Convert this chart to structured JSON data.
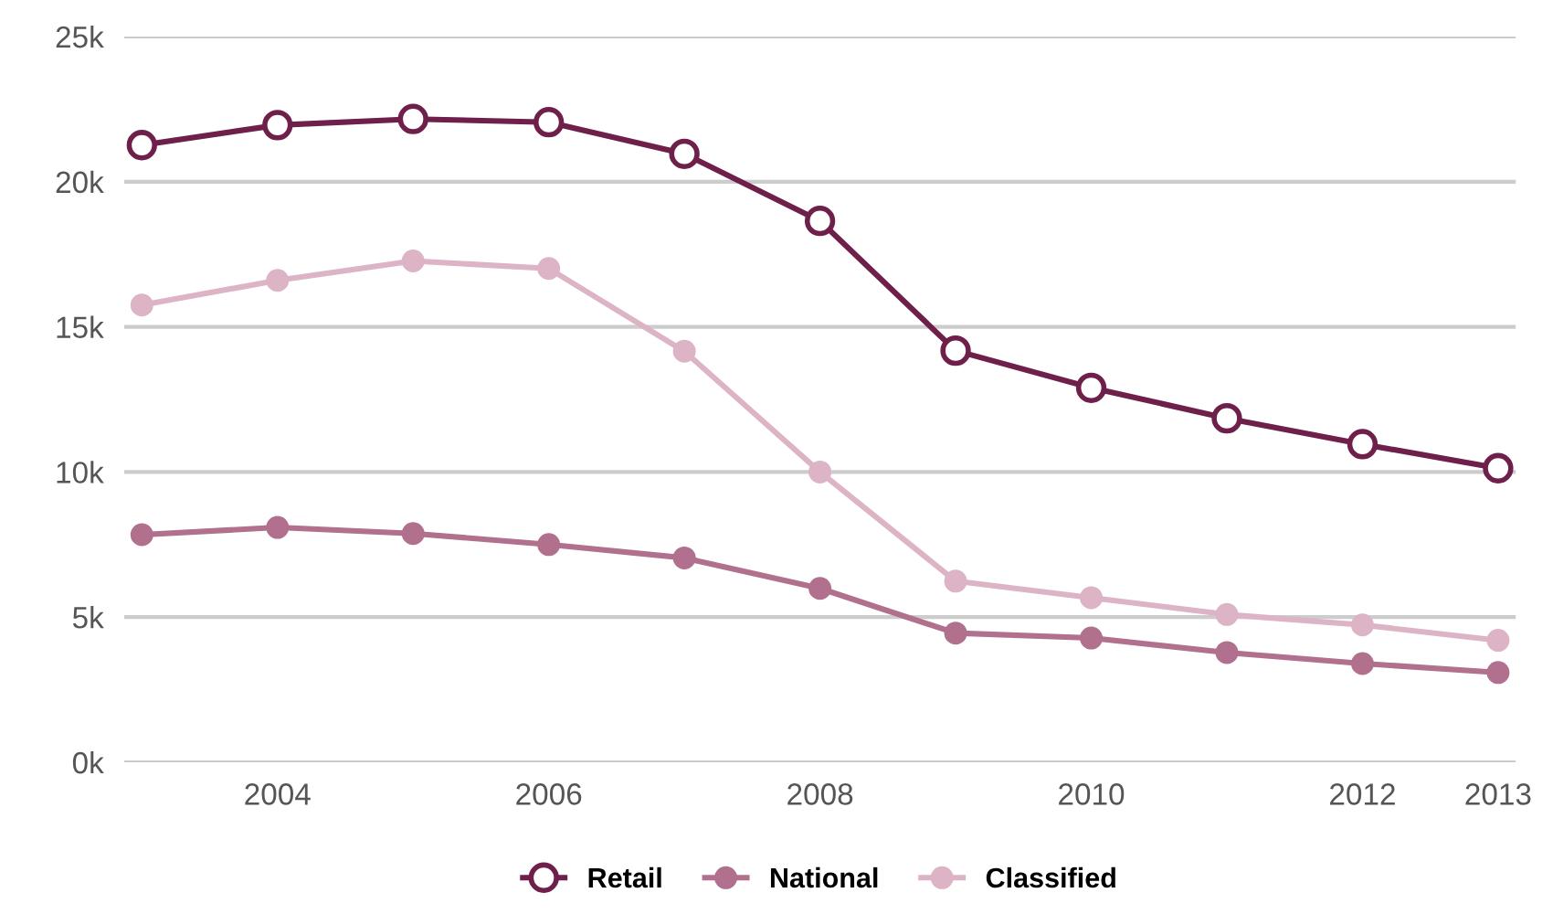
{
  "chart_data": {
    "type": "line",
    "x": [
      2003,
      2004,
      2005,
      2006,
      2007,
      2008,
      2009,
      2010,
      2011,
      2012,
      2013
    ],
    "series": [
      {
        "name": "Retail",
        "color": "#6e1f4a",
        "marker": "circle",
        "values": [
          21260,
          21950,
          22160,
          22050,
          20960,
          18650,
          14180,
          12900,
          11850,
          10960,
          10130
        ]
      },
      {
        "name": "National",
        "color": "#b0708e",
        "marker": "circle",
        "values": [
          7840,
          8090,
          7880,
          7500,
          7040,
          5990,
          4450,
          4280,
          3780,
          3400,
          3090
        ]
      },
      {
        "name": "Classified",
        "color": "#dcb4c6",
        "marker": "circle",
        "values": [
          15750,
          16600,
          17270,
          17010,
          14160,
          10000,
          6240,
          5670,
          5090,
          4730,
          4200
        ]
      }
    ],
    "xlim": [
      2002.87,
      2013.13
    ],
    "xticks": [
      2004,
      2006,
      2008,
      2010,
      2012,
      2013
    ],
    "ylim": [
      0,
      25000
    ],
    "yticks": [
      {
        "value": 0,
        "label": "0k"
      },
      {
        "value": 5000,
        "label": "5k"
      },
      {
        "value": 10000,
        "label": "10k"
      },
      {
        "value": 15000,
        "label": "15k"
      },
      {
        "value": 20000,
        "label": "20k"
      },
      {
        "value": 25000,
        "label": "25k"
      }
    ],
    "grid": "y",
    "legend": "bottom"
  }
}
